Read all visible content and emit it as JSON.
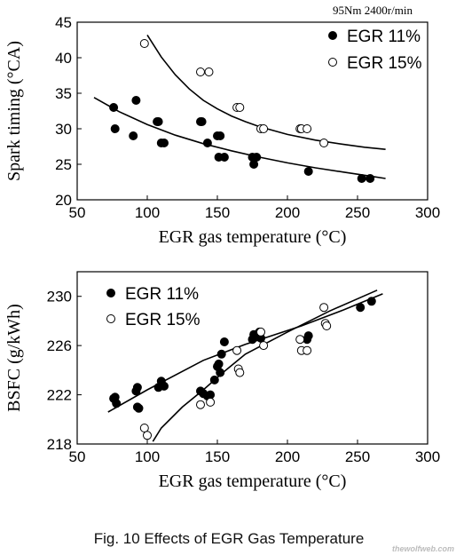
{
  "caption": "Fig. 10 Effects of EGR Gas Temperature",
  "watermark": "thewolfweb.com",
  "chart_data": [
    {
      "type": "scatter",
      "annotation": "95Nm  2400r/min",
      "xlabel": "EGR gas temperature (°C)",
      "ylabel": "Spark timing (°CA)",
      "xlim": [
        50,
        300
      ],
      "ylim": [
        20,
        45
      ],
      "xticks": [
        "50",
        "100",
        "150",
        "200",
        "250",
        "300"
      ],
      "yticks": [
        "20",
        "25",
        "30",
        "35",
        "40",
        "45"
      ],
      "legend_position": "top-right",
      "series": [
        {
          "name": "EGR 11%",
          "marker": "filled",
          "points": [
            [
              76,
              33
            ],
            [
              77,
              30
            ],
            [
              90,
              29
            ],
            [
              92,
              34
            ],
            [
              107,
              31
            ],
            [
              108,
              31
            ],
            [
              110,
              28
            ],
            [
              112,
              28
            ],
            [
              138,
              31
            ],
            [
              139,
              31
            ],
            [
              143,
              28
            ],
            [
              150,
              29
            ],
            [
              151,
              26
            ],
            [
              152,
              29
            ],
            [
              155,
              26
            ],
            [
              175,
              26
            ],
            [
              176,
              25
            ],
            [
              178,
              26
            ],
            [
              215,
              24
            ],
            [
              253,
              23
            ],
            [
              259,
              23
            ]
          ],
          "trend": [
            [
              62,
              34.4
            ],
            [
              80,
              32.4
            ],
            [
              100,
              30.6
            ],
            [
              120,
              29.1
            ],
            [
              140,
              27.9
            ],
            [
              160,
              26.9
            ],
            [
              180,
              26.0
            ],
            [
              200,
              25.2
            ],
            [
              220,
              24.5
            ],
            [
              240,
              23.9
            ],
            [
              260,
              23.3
            ],
            [
              270,
              23.0
            ]
          ]
        },
        {
          "name": "EGR 15%",
          "marker": "open",
          "points": [
            [
              98,
              42
            ],
            [
              138,
              38
            ],
            [
              144,
              38
            ],
            [
              164,
              33
            ],
            [
              166,
              33
            ],
            [
              181,
              30
            ],
            [
              183,
              30
            ],
            [
              209,
              30
            ],
            [
              210,
              30
            ],
            [
              214,
              30
            ],
            [
              226,
              28
            ]
          ],
          "trend": [
            [
              100,
              43.2
            ],
            [
              110,
              40.1
            ],
            [
              120,
              37.6
            ],
            [
              130,
              35.6
            ],
            [
              140,
              34.0
            ],
            [
              150,
              32.8
            ],
            [
              160,
              31.8
            ],
            [
              170,
              31.0
            ],
            [
              180,
              30.3
            ],
            [
              200,
              29.2
            ],
            [
              220,
              28.4
            ],
            [
              240,
              27.8
            ],
            [
              255,
              27.4
            ],
            [
              270,
              27.1
            ]
          ]
        }
      ]
    },
    {
      "type": "scatter",
      "xlabel": "EGR gas temperature (°C)",
      "ylabel": "BSFC (g/kWh)",
      "xlim": [
        50,
        300
      ],
      "ylim": [
        218,
        232
      ],
      "xticks": [
        "50",
        "100",
        "150",
        "200",
        "250",
        "300"
      ],
      "yticks": [
        "218",
        "222",
        "226",
        "230"
      ],
      "legend_position": "top-left",
      "series": [
        {
          "name": "EGR 11%",
          "marker": "filled",
          "points": [
            [
              76,
              221.7
            ],
            [
              77,
              221.8
            ],
            [
              78,
              221.3
            ],
            [
              92,
              222.3
            ],
            [
              93,
              222.6
            ],
            [
              93,
              221.0
            ],
            [
              94,
              220.9
            ],
            [
              108,
              222.6
            ],
            [
              110,
              223.1
            ],
            [
              112,
              222.7
            ],
            [
              138,
              222.3
            ],
            [
              140,
              222.1
            ],
            [
              143,
              221.9
            ],
            [
              145,
              222.0
            ],
            [
              148,
              223.2
            ],
            [
              150,
              224.3
            ],
            [
              151,
              224.5
            ],
            [
              152,
              223.8
            ],
            [
              153,
              225.3
            ],
            [
              155,
              226.3
            ],
            [
              175,
              226.5
            ],
            [
              176,
              226.9
            ],
            [
              180,
              227.1
            ],
            [
              181,
              226.6
            ],
            [
              214,
              226.5
            ],
            [
              215,
              226.8
            ],
            [
              252,
              229.1
            ],
            [
              260,
              229.6
            ]
          ],
          "trend": [
            [
              72,
              220.6
            ],
            [
              100,
              222.4
            ],
            [
              140,
              224.8
            ],
            [
              170,
              226.1
            ],
            [
              210,
              227.6
            ],
            [
              240,
              228.9
            ],
            [
              268,
              230.2
            ]
          ]
        },
        {
          "name": "EGR 15%",
          "marker": "open",
          "points": [
            [
              98,
              219.3
            ],
            [
              100,
              218.7
            ],
            [
              138,
              221.2
            ],
            [
              145,
              221.4
            ],
            [
              164,
              225.6
            ],
            [
              165,
              224.1
            ],
            [
              166,
              223.8
            ],
            [
              181,
              227.1
            ],
            [
              183,
              226.0
            ],
            [
              209,
              226.5
            ],
            [
              210,
              225.6
            ],
            [
              214,
              225.6
            ],
            [
              226,
              229.1
            ],
            [
              227,
              227.8
            ],
            [
              228,
              227.6
            ]
          ],
          "trend": [
            [
              104,
              218.2
            ],
            [
              110,
              219.3
            ],
            [
              125,
              221.0
            ],
            [
              140,
              222.4
            ],
            [
              155,
              223.9
            ],
            [
              170,
              225.3
            ],
            [
              200,
              227.1
            ],
            [
              230,
              228.8
            ],
            [
              264,
              230.5
            ]
          ]
        }
      ]
    }
  ]
}
